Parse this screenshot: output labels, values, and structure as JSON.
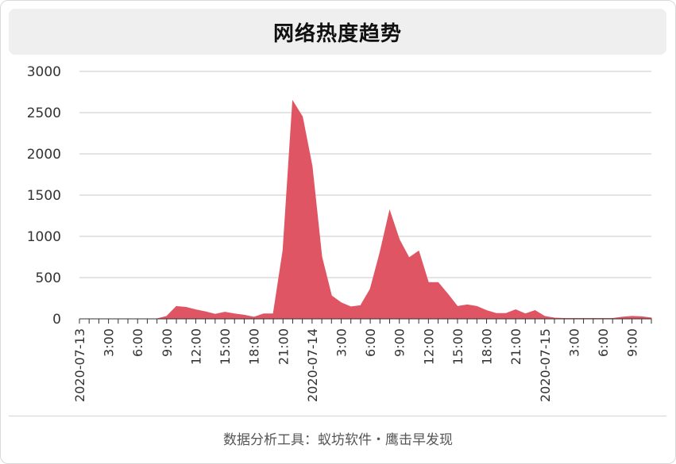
{
  "header": {
    "title": "网络热度趋势"
  },
  "footer": {
    "text": "数据分析工具：蚁坊软件・鹰击早发现"
  },
  "colors": {
    "fill": "#e05563",
    "grid": "#c9c9c9",
    "axis": "#333333",
    "text": "#333333"
  },
  "chart_data": {
    "type": "area",
    "title": "网络热度趋势",
    "xlabel": "",
    "ylabel": "",
    "ylim": [
      0,
      3000
    ],
    "yticks": [
      0,
      500,
      1000,
      1500,
      2000,
      2500,
      3000
    ],
    "grid": true,
    "x_labels": [
      {
        "i": 0,
        "label": "2020-07-13"
      },
      {
        "i": 3,
        "label": "3:00"
      },
      {
        "i": 6,
        "label": "6:00"
      },
      {
        "i": 9,
        "label": "9:00"
      },
      {
        "i": 12,
        "label": "12:00"
      },
      {
        "i": 15,
        "label": "15:00"
      },
      {
        "i": 18,
        "label": "18:00"
      },
      {
        "i": 21,
        "label": "21:00"
      },
      {
        "i": 24,
        "label": "2020-07-14"
      },
      {
        "i": 27,
        "label": "3:00"
      },
      {
        "i": 30,
        "label": "6:00"
      },
      {
        "i": 33,
        "label": "9:00"
      },
      {
        "i": 36,
        "label": "12:00"
      },
      {
        "i": 39,
        "label": "15:00"
      },
      {
        "i": 42,
        "label": "18:00"
      },
      {
        "i": 45,
        "label": "21:00"
      },
      {
        "i": 48,
        "label": "2020-07-15"
      },
      {
        "i": 51,
        "label": "3:00"
      },
      {
        "i": 54,
        "label": "6:00"
      },
      {
        "i": 57,
        "label": "9:00"
      }
    ],
    "series": [
      {
        "values": [
          0,
          0,
          0,
          0,
          0,
          0,
          0,
          0,
          0,
          30,
          150,
          140,
          110,
          85,
          55,
          80,
          60,
          45,
          20,
          60,
          60,
          830,
          2640,
          2450,
          1850,
          750,
          280,
          195,
          145,
          160,
          360,
          800,
          1310,
          960,
          740,
          820,
          440,
          440,
          300,
          150,
          170,
          150,
          100,
          65,
          65,
          110,
          60,
          100,
          30,
          10,
          5,
          5,
          5,
          5,
          5,
          5,
          20,
          30,
          25,
          10
        ]
      }
    ]
  }
}
